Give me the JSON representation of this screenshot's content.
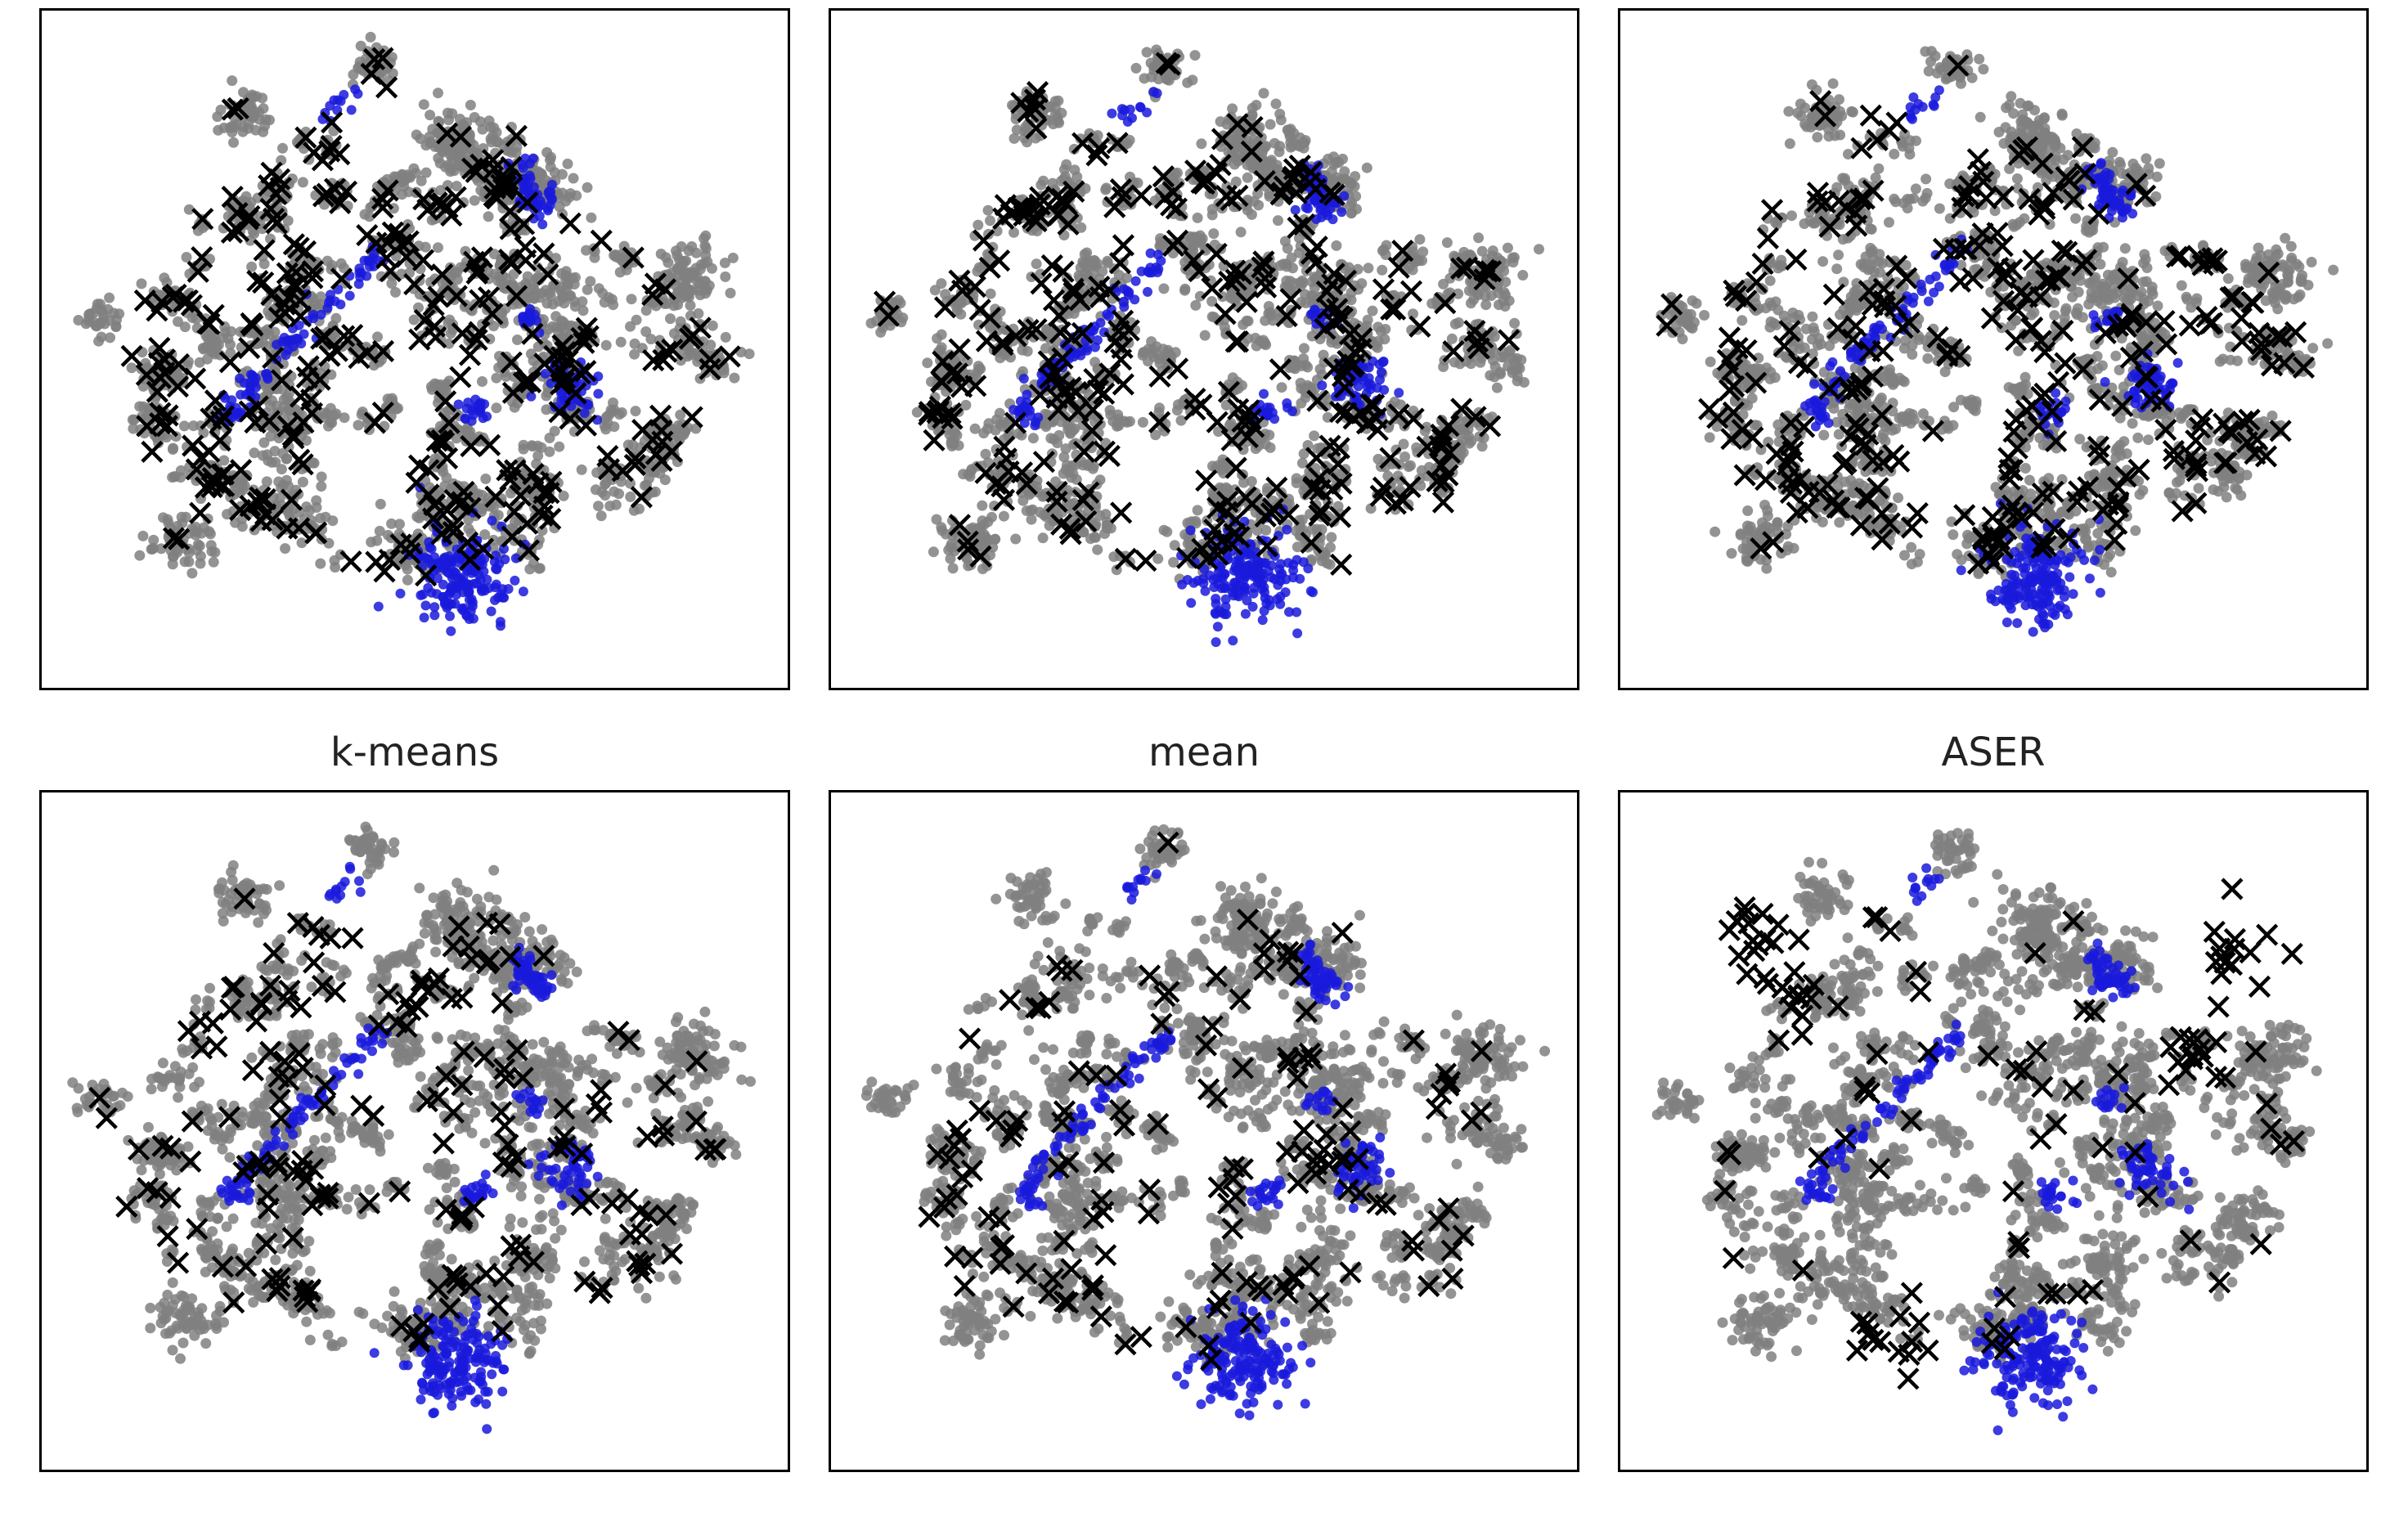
{
  "colors": {
    "other": "#808080",
    "highlight": "#1a1adc",
    "selected": "#000000"
  },
  "chart_data": [
    {
      "type": "scatter",
      "title": "",
      "xlim": [
        -50,
        50
      ],
      "ylim": [
        -50,
        50
      ],
      "seed": 11,
      "density": 1.0,
      "selection": "spread",
      "n_selected": 330
    },
    {
      "type": "scatter",
      "title": "",
      "xlim": [
        -50,
        50
      ],
      "ylim": [
        -50,
        50
      ],
      "seed": 23,
      "density": 1.0,
      "selection": "spread",
      "n_selected": 330
    },
    {
      "type": "scatter",
      "title": "",
      "xlim": [
        -50,
        50
      ],
      "ylim": [
        -50,
        50
      ],
      "seed": 37,
      "density": 1.0,
      "selection": "spread",
      "n_selected": 310
    },
    {
      "type": "scatter",
      "title": "k-means",
      "xlim": [
        -50,
        50
      ],
      "ylim": [
        -50,
        50
      ],
      "seed": 41,
      "density": 1.0,
      "selection": "spread",
      "n_selected": 190
    },
    {
      "type": "scatter",
      "title": "mean",
      "xlim": [
        -50,
        50
      ],
      "ylim": [
        -50,
        50
      ],
      "seed": 53,
      "density": 1.0,
      "selection": "spread",
      "n_selected": 150
    },
    {
      "type": "scatter",
      "title": "ASER",
      "xlim": [
        -50,
        50
      ],
      "ylim": [
        -50,
        50
      ],
      "seed": 67,
      "density": 1.0,
      "selection": "clustered",
      "n_selected": 130,
      "selected_clusters": [
        [
          30,
          12
        ],
        [
          35,
          28
        ],
        [
          -35,
          32
        ],
        [
          -28,
          22
        ],
        [
          -15,
          -35
        ]
      ]
    }
  ]
}
